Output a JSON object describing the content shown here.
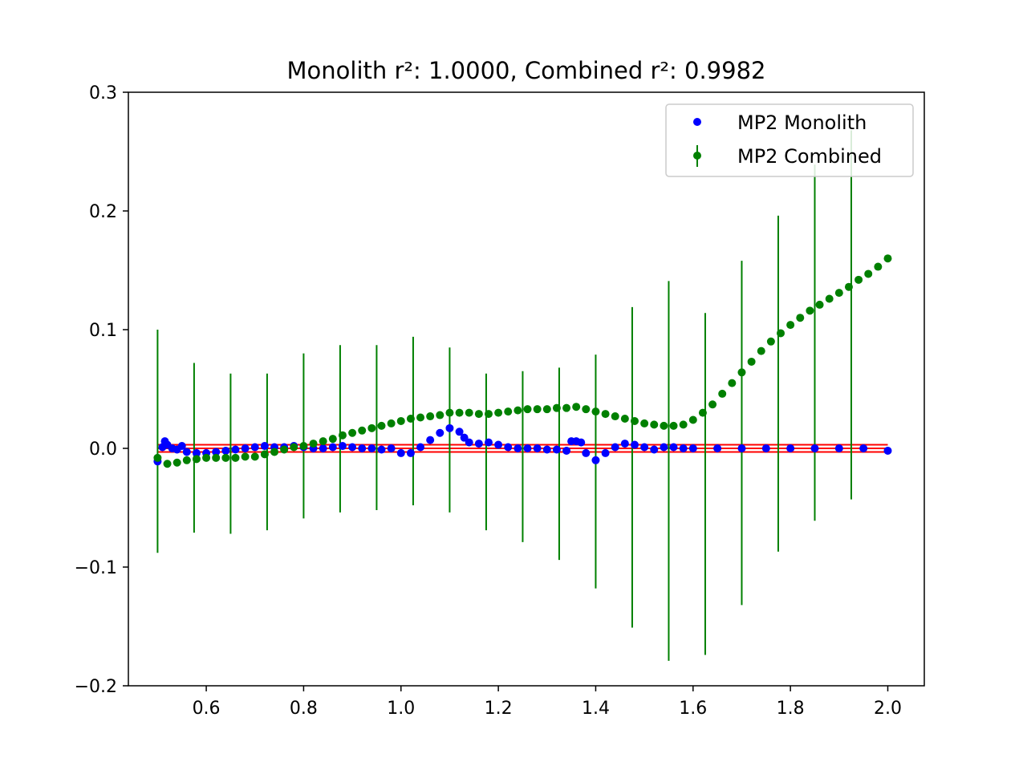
{
  "chart_data": {
    "type": "scatter",
    "title": "Monolith r²: 1.0000, Combined r²: 0.9982",
    "xlabel": "",
    "ylabel": "",
    "xlim": [
      0.44,
      2.075
    ],
    "ylim": [
      -0.2,
      0.3
    ],
    "x_ticks": [
      0.6,
      0.8,
      1.0,
      1.2,
      1.4,
      1.6,
      1.8,
      2.0
    ],
    "x_tick_labels": [
      "0.6",
      "0.8",
      "1.0",
      "1.2",
      "1.4",
      "1.6",
      "1.8",
      "2.0"
    ],
    "y_ticks": [
      -0.2,
      -0.1,
      0.0,
      0.1,
      0.2,
      0.3
    ],
    "y_tick_labels": [
      "−0.2",
      "−0.1",
      "0.0",
      "0.1",
      "0.2",
      "0.3"
    ],
    "grid": false,
    "legend_position": "upper right",
    "reference_lines": {
      "color": "#ff0000",
      "x_range": [
        0.5,
        2.0
      ],
      "y_values": [
        0.003,
        0.0,
        -0.003
      ]
    },
    "series": [
      {
        "name": "MP2 Monolith",
        "color": "#0000ff",
        "marker": "dot",
        "points": [
          [
            0.5,
            -0.011
          ],
          [
            0.51,
            0.001
          ],
          [
            0.515,
            0.006
          ],
          [
            0.52,
            0.003
          ],
          [
            0.53,
            0.0
          ],
          [
            0.54,
            -0.001
          ],
          [
            0.55,
            0.002
          ],
          [
            0.56,
            -0.003
          ],
          [
            0.58,
            -0.004
          ],
          [
            0.6,
            -0.004
          ],
          [
            0.62,
            -0.003
          ],
          [
            0.64,
            -0.002
          ],
          [
            0.66,
            -0.001
          ],
          [
            0.68,
            0.0
          ],
          [
            0.7,
            0.001
          ],
          [
            0.72,
            0.002
          ],
          [
            0.74,
            0.001
          ],
          [
            0.76,
            0.001
          ],
          [
            0.78,
            0.002
          ],
          [
            0.8,
            0.001
          ],
          [
            0.82,
            0.0
          ],
          [
            0.84,
            0.0
          ],
          [
            0.86,
            0.001
          ],
          [
            0.88,
            0.002
          ],
          [
            0.9,
            0.001
          ],
          [
            0.92,
            0.0
          ],
          [
            0.94,
            0.0
          ],
          [
            0.96,
            -0.001
          ],
          [
            0.98,
            0.0
          ],
          [
            1.0,
            -0.004
          ],
          [
            1.02,
            -0.004
          ],
          [
            1.04,
            0.001
          ],
          [
            1.06,
            0.007
          ],
          [
            1.08,
            0.013
          ],
          [
            1.1,
            0.017
          ],
          [
            1.12,
            0.014
          ],
          [
            1.13,
            0.009
          ],
          [
            1.14,
            0.005
          ],
          [
            1.16,
            0.004
          ],
          [
            1.18,
            0.005
          ],
          [
            1.2,
            0.003
          ],
          [
            1.22,
            0.001
          ],
          [
            1.24,
            0.0
          ],
          [
            1.26,
            0.0
          ],
          [
            1.28,
            0.0
          ],
          [
            1.3,
            -0.001
          ],
          [
            1.32,
            -0.001
          ],
          [
            1.34,
            -0.002
          ],
          [
            1.35,
            0.006
          ],
          [
            1.36,
            0.006
          ],
          [
            1.37,
            0.005
          ],
          [
            1.38,
            -0.004
          ],
          [
            1.4,
            -0.01
          ],
          [
            1.42,
            -0.004
          ],
          [
            1.44,
            0.001
          ],
          [
            1.46,
            0.004
          ],
          [
            1.48,
            0.003
          ],
          [
            1.5,
            0.001
          ],
          [
            1.52,
            -0.001
          ],
          [
            1.54,
            0.001
          ],
          [
            1.56,
            0.001
          ],
          [
            1.58,
            0.0
          ],
          [
            1.6,
            0.0
          ],
          [
            1.65,
            0.0
          ],
          [
            1.7,
            0.0
          ],
          [
            1.75,
            0.0
          ],
          [
            1.8,
            0.0
          ],
          [
            1.85,
            0.0
          ],
          [
            1.9,
            0.0
          ],
          [
            1.95,
            0.0
          ],
          [
            2.0,
            -0.002
          ]
        ]
      },
      {
        "name": "MP2 Combined",
        "color": "#008000",
        "marker": "dot-errorbar",
        "points": [
          [
            0.5,
            -0.008
          ],
          [
            0.52,
            -0.013
          ],
          [
            0.54,
            -0.012
          ],
          [
            0.56,
            -0.01
          ],
          [
            0.58,
            -0.009
          ],
          [
            0.6,
            -0.008
          ],
          [
            0.62,
            -0.008
          ],
          [
            0.64,
            -0.008
          ],
          [
            0.66,
            -0.008
          ],
          [
            0.68,
            -0.007
          ],
          [
            0.7,
            -0.007
          ],
          [
            0.72,
            -0.005
          ],
          [
            0.74,
            -0.003
          ],
          [
            0.76,
            -0.001
          ],
          [
            0.78,
            0.001
          ],
          [
            0.8,
            0.002
          ],
          [
            0.82,
            0.004
          ],
          [
            0.84,
            0.006
          ],
          [
            0.86,
            0.008
          ],
          [
            0.88,
            0.011
          ],
          [
            0.9,
            0.013
          ],
          [
            0.92,
            0.015
          ],
          [
            0.94,
            0.017
          ],
          [
            0.96,
            0.019
          ],
          [
            0.98,
            0.021
          ],
          [
            1.0,
            0.023
          ],
          [
            1.02,
            0.025
          ],
          [
            1.04,
            0.026
          ],
          [
            1.06,
            0.027
          ],
          [
            1.08,
            0.028
          ],
          [
            1.1,
            0.03
          ],
          [
            1.12,
            0.03
          ],
          [
            1.14,
            0.03
          ],
          [
            1.16,
            0.029
          ],
          [
            1.18,
            0.029
          ],
          [
            1.2,
            0.03
          ],
          [
            1.22,
            0.031
          ],
          [
            1.24,
            0.032
          ],
          [
            1.26,
            0.033
          ],
          [
            1.28,
            0.033
          ],
          [
            1.3,
            0.033
          ],
          [
            1.32,
            0.034
          ],
          [
            1.34,
            0.034
          ],
          [
            1.36,
            0.035
          ],
          [
            1.38,
            0.033
          ],
          [
            1.4,
            0.031
          ],
          [
            1.42,
            0.029
          ],
          [
            1.44,
            0.027
          ],
          [
            1.46,
            0.025
          ],
          [
            1.48,
            0.023
          ],
          [
            1.5,
            0.021
          ],
          [
            1.52,
            0.02
          ],
          [
            1.54,
            0.019
          ],
          [
            1.56,
            0.019
          ],
          [
            1.58,
            0.02
          ],
          [
            1.6,
            0.024
          ],
          [
            1.62,
            0.03
          ],
          [
            1.64,
            0.037
          ],
          [
            1.66,
            0.046
          ],
          [
            1.68,
            0.055
          ],
          [
            1.7,
            0.064
          ],
          [
            1.72,
            0.073
          ],
          [
            1.74,
            0.082
          ],
          [
            1.76,
            0.09
          ],
          [
            1.78,
            0.097
          ],
          [
            1.8,
            0.104
          ],
          [
            1.82,
            0.11
          ],
          [
            1.84,
            0.116
          ],
          [
            1.86,
            0.121
          ],
          [
            1.88,
            0.126
          ],
          [
            1.9,
            0.131
          ],
          [
            1.92,
            0.136
          ],
          [
            1.94,
            0.142
          ],
          [
            1.96,
            0.147
          ],
          [
            1.98,
            0.153
          ],
          [
            2.0,
            0.16
          ]
        ],
        "error_bars": [
          {
            "x": 0.5,
            "low": -0.088,
            "high": 0.1
          },
          {
            "x": 0.575,
            "low": -0.071,
            "high": 0.072
          },
          {
            "x": 0.65,
            "low": -0.072,
            "high": 0.063
          },
          {
            "x": 0.725,
            "low": -0.069,
            "high": 0.063
          },
          {
            "x": 0.8,
            "low": -0.059,
            "high": 0.08
          },
          {
            "x": 0.875,
            "low": -0.054,
            "high": 0.087
          },
          {
            "x": 0.95,
            "low": -0.052,
            "high": 0.087
          },
          {
            "x": 1.025,
            "low": -0.048,
            "high": 0.094
          },
          {
            "x": 1.1,
            "low": -0.054,
            "high": 0.085
          },
          {
            "x": 1.175,
            "low": -0.069,
            "high": 0.063
          },
          {
            "x": 1.25,
            "low": -0.079,
            "high": 0.065
          },
          {
            "x": 1.325,
            "low": -0.094,
            "high": 0.068
          },
          {
            "x": 1.4,
            "low": -0.118,
            "high": 0.079
          },
          {
            "x": 1.475,
            "low": -0.151,
            "high": 0.119
          },
          {
            "x": 1.55,
            "low": -0.179,
            "high": 0.141
          },
          {
            "x": 1.625,
            "low": -0.174,
            "high": 0.114
          },
          {
            "x": 1.7,
            "low": -0.132,
            "high": 0.158
          },
          {
            "x": 1.775,
            "low": -0.087,
            "high": 0.196
          },
          {
            "x": 1.85,
            "low": -0.061,
            "high": 0.239
          },
          {
            "x": 1.925,
            "low": -0.043,
            "high": 0.268
          }
        ]
      }
    ]
  }
}
